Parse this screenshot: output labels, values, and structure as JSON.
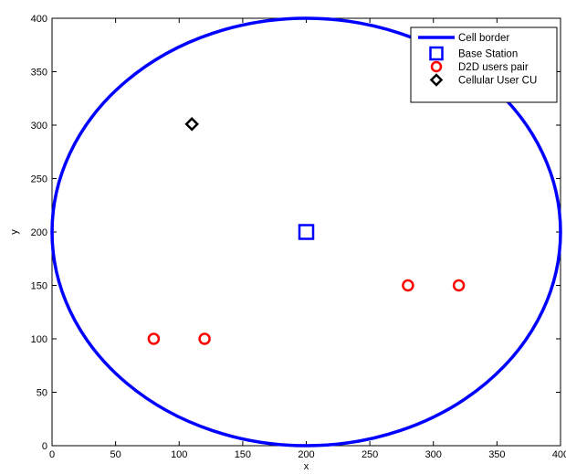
{
  "chart_data": {
    "type": "scatter",
    "title": "",
    "xlabel": "x",
    "ylabel": "y",
    "xlim": [
      0,
      400
    ],
    "ylim": [
      0,
      400
    ],
    "xticks": [
      0,
      50,
      100,
      150,
      200,
      250,
      300,
      350,
      400
    ],
    "yticks": [
      0,
      50,
      100,
      150,
      200,
      250,
      300,
      350,
      400
    ],
    "grid": false,
    "legend_position": "top-right",
    "series": [
      {
        "name": "Cell border",
        "kind": "line",
        "shape": "circle",
        "center": [
          200,
          200
        ],
        "radius": 200,
        "color": "#0000ff"
      },
      {
        "name": "Base Station",
        "kind": "marker",
        "marker": "square",
        "color": "#0000ff",
        "points": [
          [
            200,
            200
          ]
        ]
      },
      {
        "name": "D2D users pair",
        "kind": "marker",
        "marker": "circle",
        "color": "#ff0000",
        "points": [
          [
            80,
            100
          ],
          [
            120,
            100
          ],
          [
            280,
            150
          ],
          [
            320,
            150
          ]
        ]
      },
      {
        "name": "Cellular User CU",
        "kind": "marker",
        "marker": "diamond",
        "color": "#000000",
        "points": [
          [
            110,
            301
          ]
        ]
      }
    ]
  }
}
